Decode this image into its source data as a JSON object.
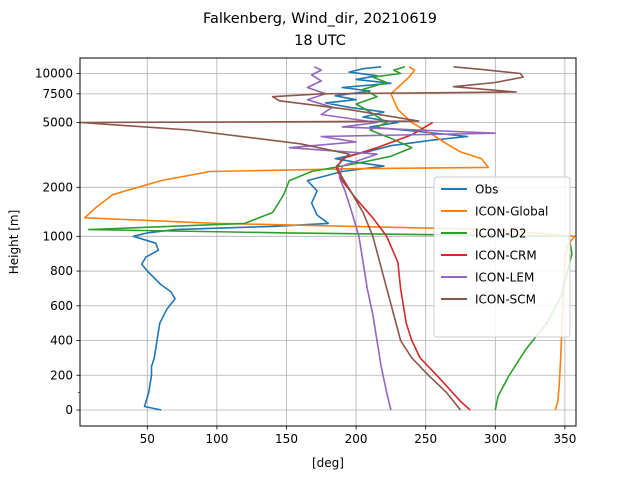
{
  "chart_data": {
    "type": "line",
    "title": "Falkenberg, Wind_dir, 20210619",
    "subtitle": "18 UTC",
    "xlabel": "[deg]",
    "ylabel": "Height [m]",
    "xlim": [
      2,
      356
    ],
    "xticks": [
      50,
      100,
      150,
      200,
      250,
      300,
      350
    ],
    "ytick_labels": [
      "0",
      "200",
      "400",
      "600",
      "800",
      "1000",
      "2000",
      "5000",
      "7500",
      "10000"
    ],
    "grid": true,
    "legend_position": "center-right",
    "series": [
      {
        "name": "Obs",
        "color": "#1f77b4",
        "points": [
          [
            60,
            0
          ],
          [
            48,
            20
          ],
          [
            51,
            100
          ],
          [
            53,
            200
          ],
          [
            53,
            250
          ],
          [
            55,
            300
          ],
          [
            57,
            400
          ],
          [
            59,
            500
          ],
          [
            64,
            580
          ],
          [
            70,
            640
          ],
          [
            67,
            680
          ],
          [
            60,
            720
          ],
          [
            50,
            800
          ],
          [
            46,
            840
          ],
          [
            49,
            880
          ],
          [
            58,
            920
          ],
          [
            56,
            960
          ],
          [
            40,
            1000
          ],
          [
            50,
            1050
          ],
          [
            70,
            1100
          ],
          [
            140,
            1150
          ],
          [
            180,
            1200
          ],
          [
            172,
            1350
          ],
          [
            168,
            1600
          ],
          [
            172,
            1900
          ],
          [
            165,
            2200
          ],
          [
            190,
            2500
          ],
          [
            220,
            2700
          ],
          [
            200,
            2850
          ],
          [
            185,
            3000
          ],
          [
            208,
            3300
          ],
          [
            225,
            3600
          ],
          [
            255,
            3900
          ],
          [
            280,
            4100
          ],
          [
            245,
            4400
          ],
          [
            210,
            4700
          ],
          [
            230,
            5000
          ],
          [
            205,
            5400
          ],
          [
            220,
            5800
          ],
          [
            195,
            6200
          ],
          [
            178,
            6600
          ],
          [
            200,
            6900
          ],
          [
            185,
            7300
          ],
          [
            210,
            7800
          ],
          [
            190,
            8200
          ],
          [
            225,
            8700
          ],
          [
            200,
            9200
          ],
          [
            215,
            9700
          ],
          [
            195,
            10200
          ],
          [
            205,
            10700
          ],
          [
            218,
            11000
          ]
        ]
      },
      {
        "name": "ICON-Global",
        "color": "#ff7f0e",
        "points": [
          [
            343,
            0
          ],
          [
            345,
            50
          ],
          [
            346,
            150
          ],
          [
            347,
            300
          ],
          [
            348,
            500
          ],
          [
            349,
            700
          ],
          [
            350,
            850
          ],
          [
            352,
            950
          ],
          [
            357,
            1000
          ],
          [
            300,
            1100
          ],
          [
            100,
            1200
          ],
          [
            5,
            1300
          ],
          [
            13,
            1500
          ],
          [
            25,
            1800
          ],
          [
            60,
            2200
          ],
          [
            95,
            2500
          ],
          [
            200,
            2600
          ],
          [
            295,
            2650
          ],
          [
            290,
            3000
          ],
          [
            275,
            3300
          ],
          [
            265,
            3700
          ],
          [
            255,
            4200
          ],
          [
            240,
            5000
          ],
          [
            230,
            6000
          ],
          [
            225,
            7500
          ],
          [
            232,
            8500
          ],
          [
            238,
            9500
          ],
          [
            242,
            10500
          ],
          [
            238,
            11000
          ]
        ]
      },
      {
        "name": "ICON-D2",
        "color": "#2ca02c",
        "points": [
          [
            300,
            0
          ],
          [
            302,
            80
          ],
          [
            310,
            200
          ],
          [
            322,
            350
          ],
          [
            337,
            500
          ],
          [
            347,
            650
          ],
          [
            352,
            800
          ],
          [
            355,
            900
          ],
          [
            353,
            1000
          ],
          [
            150,
            1050
          ],
          [
            8,
            1100
          ],
          [
            120,
            1200
          ],
          [
            140,
            1400
          ],
          [
            148,
            1800
          ],
          [
            152,
            2200
          ],
          [
            168,
            2500
          ],
          [
            200,
            2800
          ],
          [
            225,
            3100
          ],
          [
            240,
            3500
          ],
          [
            225,
            4000
          ],
          [
            210,
            4500
          ],
          [
            222,
            5000
          ],
          [
            210,
            5800
          ],
          [
            200,
            6500
          ],
          [
            215,
            7200
          ],
          [
            205,
            8000
          ],
          [
            222,
            8800
          ],
          [
            212,
            9500
          ],
          [
            232,
            10000
          ],
          [
            227,
            10500
          ],
          [
            235,
            11000
          ]
        ]
      },
      {
        "name": "ICON-CRM",
        "color": "#d62728",
        "points": [
          [
            282,
            0
          ],
          [
            275,
            50
          ],
          [
            258,
            200
          ],
          [
            246,
            300
          ],
          [
            240,
            400
          ],
          [
            236,
            500
          ],
          [
            232,
            700
          ],
          [
            230,
            850
          ],
          [
            222,
            1000
          ],
          [
            212,
            1300
          ],
          [
            200,
            1700
          ],
          [
            190,
            2200
          ],
          [
            186,
            2600
          ],
          [
            190,
            3000
          ],
          [
            215,
            3500
          ],
          [
            240,
            4200
          ],
          [
            255,
            5000
          ]
        ]
      },
      {
        "name": "ICON-LEM",
        "color": "#9467bd",
        "points": [
          [
            225,
            0
          ],
          [
            222,
            100
          ],
          [
            218,
            250
          ],
          [
            215,
            400
          ],
          [
            212,
            550
          ],
          [
            208,
            700
          ],
          [
            205,
            850
          ],
          [
            202,
            1000
          ],
          [
            197,
            1400
          ],
          [
            192,
            1900
          ],
          [
            188,
            2300
          ],
          [
            190,
            2700
          ],
          [
            215,
            3200
          ],
          [
            152,
            3500
          ],
          [
            200,
            3800
          ],
          [
            175,
            4100
          ],
          [
            300,
            4300
          ],
          [
            245,
            4500
          ],
          [
            190,
            4700
          ],
          [
            215,
            5000
          ],
          [
            175,
            5600
          ],
          [
            183,
            6200
          ],
          [
            165,
            6900
          ],
          [
            178,
            7500
          ],
          [
            165,
            8200
          ],
          [
            175,
            9000
          ],
          [
            168,
            9800
          ],
          [
            175,
            10500
          ],
          [
            170,
            11000
          ]
        ]
      },
      {
        "name": "ICON-SCM",
        "color": "#8c564b",
        "points": [
          [
            275,
            0
          ],
          [
            265,
            100
          ],
          [
            252,
            200
          ],
          [
            240,
            300
          ],
          [
            232,
            400
          ],
          [
            227,
            550
          ],
          [
            222,
            700
          ],
          [
            217,
            850
          ],
          [
            212,
            1000
          ],
          [
            205,
            1400
          ],
          [
            196,
            1900
          ],
          [
            190,
            2300
          ],
          [
            186,
            2700
          ],
          [
            195,
            3200
          ],
          [
            160,
            3700
          ],
          [
            80,
            4500
          ],
          [
            2,
            5000
          ],
          [
            150,
            5050
          ],
          [
            245,
            5100
          ],
          [
            195,
            6000
          ],
          [
            145,
            6800
          ],
          [
            140,
            7200
          ],
          [
            175,
            7500
          ],
          [
            315,
            7700
          ],
          [
            270,
            8300
          ],
          [
            300,
            8800
          ],
          [
            320,
            9500
          ],
          [
            318,
            10000
          ],
          [
            290,
            10600
          ],
          [
            270,
            11000
          ]
        ]
      }
    ]
  }
}
